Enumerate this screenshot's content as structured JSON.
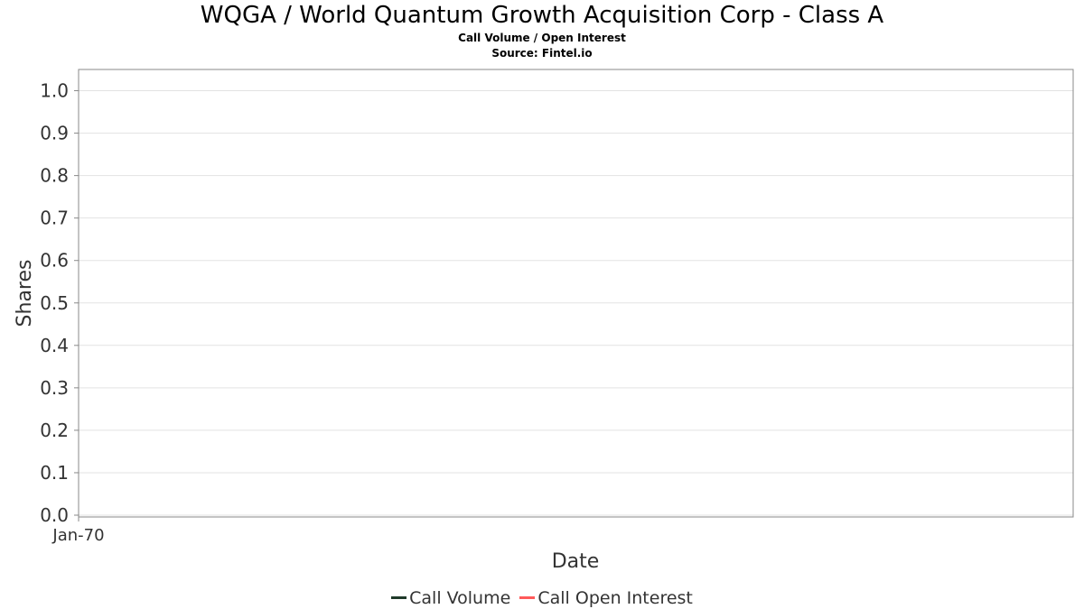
{
  "chart_data": {
    "type": "line",
    "title": "WQGA / World Quantum Growth Acquisition Corp - Class A",
    "subtitle": "Call Volume / Open Interest",
    "source": "Source: Fintel.io",
    "xlabel": "Date",
    "ylabel": "Shares",
    "x_ticks": [
      "Jan-70"
    ],
    "y_ticks": [
      "0.0",
      "0.1",
      "0.2",
      "0.3",
      "0.4",
      "0.5",
      "0.6",
      "0.7",
      "0.8",
      "0.9",
      "1.0"
    ],
    "ylim": [
      0,
      1.05
    ],
    "grid": true,
    "legend_position": "bottom",
    "series": [
      {
        "name": "Call Volume",
        "color": "#1f3a2a",
        "values": []
      },
      {
        "name": "Call Open Interest",
        "color": "#ff5a5a",
        "values": []
      }
    ]
  }
}
